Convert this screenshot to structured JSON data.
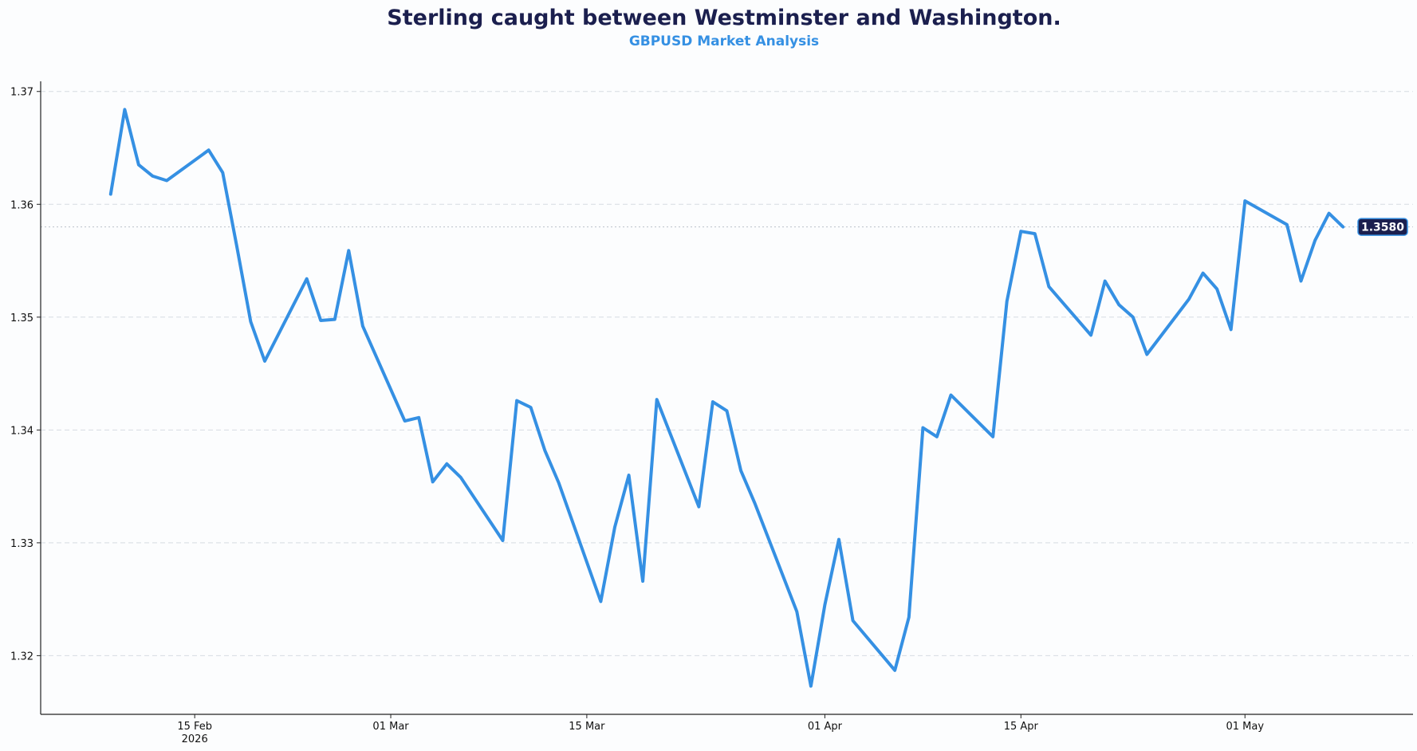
{
  "chart_data": {
    "type": "line",
    "title": "Sterling caught between Westminster and Washington.",
    "subtitle": "GBPUSD Market Analysis",
    "xlabel": "",
    "ylabel": "",
    "ylim": [
      1.3148,
      1.3709
    ],
    "xlim": [
      "2026-02-04",
      "2026-05-13"
    ],
    "grid": "horizontal dashed",
    "x_ticks": [
      {
        "date": "2026-02-15",
        "label": "15 Feb",
        "sublabel": "2026"
      },
      {
        "date": "2026-03-01",
        "label": "01 Mar",
        "sublabel": ""
      },
      {
        "date": "2026-03-15",
        "label": "15 Mar",
        "sublabel": ""
      },
      {
        "date": "2026-04-01",
        "label": "01 Apr",
        "sublabel": ""
      },
      {
        "date": "2026-04-15",
        "label": "15 Apr",
        "sublabel": ""
      },
      {
        "date": "2026-05-01",
        "label": "01 May",
        "sublabel": ""
      }
    ],
    "y_ticks": [
      {
        "value": 1.32,
        "label": "1.32"
      },
      {
        "value": 1.33,
        "label": "1.33"
      },
      {
        "value": 1.34,
        "label": "1.34"
      },
      {
        "value": 1.35,
        "label": "1.35"
      },
      {
        "value": 1.36,
        "label": "1.36"
      },
      {
        "value": 1.37,
        "label": "1.37"
      }
    ],
    "last_value_label": "1.3580",
    "last_value": 1.358,
    "colors": {
      "line": "#3590e3",
      "title": "#1b1f4e",
      "subtitle": "#3590e3",
      "badge": "#1b1f4e"
    },
    "series": [
      {
        "x": [
          "2026-02-09",
          "2026-02-10",
          "2026-02-11",
          "2026-02-12",
          "2026-02-13",
          "2026-02-16",
          "2026-02-17",
          "2026-02-18",
          "2026-02-19",
          "2026-02-20",
          "2026-02-23",
          "2026-02-24",
          "2026-02-25",
          "2026-02-26",
          "2026-02-27",
          "2026-03-02",
          "2026-03-03",
          "2026-03-04",
          "2026-03-05",
          "2026-03-06",
          "2026-03-09",
          "2026-03-10",
          "2026-03-11",
          "2026-03-12",
          "2026-03-13",
          "2026-03-16",
          "2026-03-17",
          "2026-03-18",
          "2026-03-19",
          "2026-03-20",
          "2026-03-23",
          "2026-03-24",
          "2026-03-25",
          "2026-03-26",
          "2026-03-27",
          "2026-03-30",
          "2026-03-31",
          "2026-04-01",
          "2026-04-02",
          "2026-04-03",
          "2026-04-06",
          "2026-04-07",
          "2026-04-08",
          "2026-04-09",
          "2026-04-10",
          "2026-04-13",
          "2026-04-14",
          "2026-04-15",
          "2026-04-16",
          "2026-04-17",
          "2026-04-20",
          "2026-04-21",
          "2026-04-22",
          "2026-04-23",
          "2026-04-24",
          "2026-04-27",
          "2026-04-28",
          "2026-04-29",
          "2026-04-30",
          "2026-05-01",
          "2026-05-04",
          "2026-05-05",
          "2026-05-06",
          "2026-05-07",
          "2026-05-08"
        ],
        "values": [
          1.3609,
          1.3684,
          1.3635,
          1.3625,
          1.3621,
          1.3648,
          1.3628,
          1.3563,
          1.3496,
          1.3461,
          1.3534,
          1.3497,
          1.3498,
          1.3559,
          1.3492,
          1.3408,
          1.3411,
          1.3354,
          1.337,
          1.3358,
          1.3302,
          1.3426,
          1.342,
          1.3382,
          1.3353,
          1.3248,
          1.3314,
          1.336,
          1.3266,
          1.3427,
          1.3332,
          1.3425,
          1.3417,
          1.3364,
          1.3335,
          1.3239,
          1.3173,
          1.3245,
          1.3303,
          1.3231,
          1.3187,
          1.3234,
          1.3402,
          1.3394,
          1.3431,
          1.3394,
          1.3514,
          1.3576,
          1.3574,
          1.3527,
          1.3484,
          1.3532,
          1.3511,
          1.35,
          1.3467,
          1.3516,
          1.3539,
          1.3525,
          1.3489,
          1.3603,
          1.3582,
          1.3532,
          1.3568,
          1.3592,
          1.358
        ]
      }
    ]
  }
}
